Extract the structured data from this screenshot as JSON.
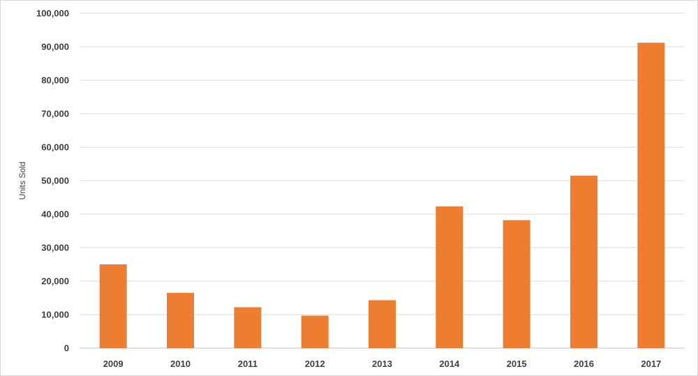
{
  "chart_data": {
    "type": "bar",
    "categories": [
      "2009",
      "2010",
      "2011",
      "2012",
      "2013",
      "2014",
      "2015",
      "2016",
      "2017"
    ],
    "values": [
      25000,
      16500,
      12200,
      9700,
      14300,
      42300,
      38200,
      51500,
      91200
    ],
    "xlabel": "",
    "ylabel": "Units Sold",
    "ylim": [
      0,
      100000
    ],
    "yticks": [
      "0",
      "10,000",
      "20,000",
      "30,000",
      "40,000",
      "50,000",
      "60,000",
      "70,000",
      "80,000",
      "90,000",
      "100,000"
    ],
    "grid": true,
    "legend": "none",
    "bar_color": "#ED7D31"
  }
}
